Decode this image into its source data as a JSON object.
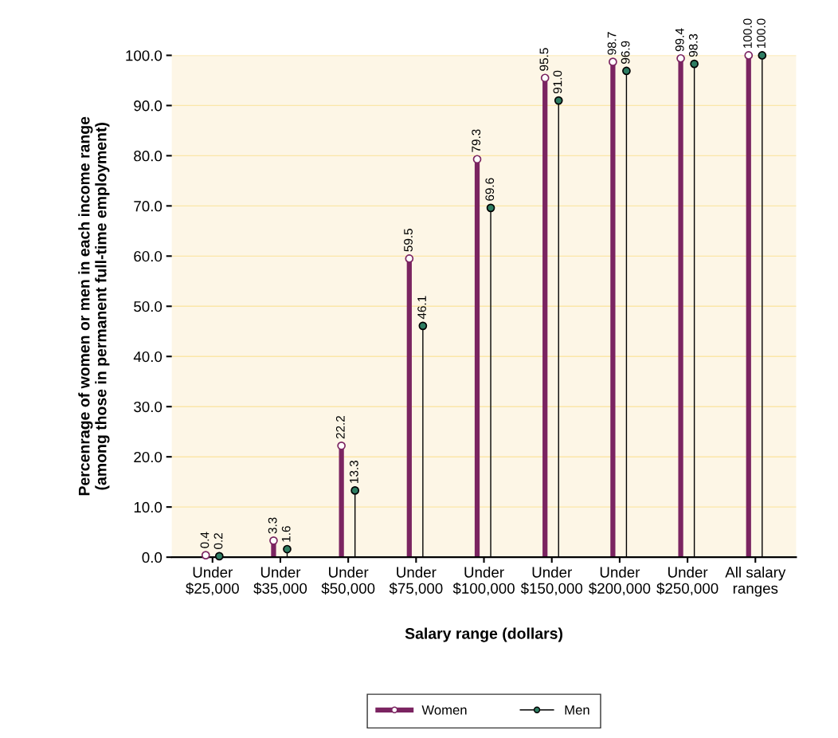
{
  "chart_data": {
    "type": "lollipop",
    "xlabel": "Salary range (dollars)",
    "ylabel": "Percenrage of women or men in each income range\n(among those in permanent full-time employment)",
    "categories": [
      "Under\n$25,000",
      "Under\n$35,000",
      "Under\n$50,000",
      "Under\n$75,000",
      "Under\n$100,000",
      "Under\n$150,000",
      "Under\n$200,000",
      "Under\n$250,000",
      "All salary\nranges"
    ],
    "series": [
      {
        "name": "Women",
        "color": "#7b2461",
        "values": [
          0.4,
          3.3,
          22.2,
          59.5,
          79.3,
          95.5,
          98.7,
          99.4,
          100.0
        ],
        "value_labels": [
          "0.4",
          "3.3",
          "22.2",
          "59.5",
          "79.3",
          "95.5",
          "98.7",
          "99.4",
          "100.0"
        ]
      },
      {
        "name": "Men",
        "color": "#2e7d62",
        "values": [
          0.2,
          1.6,
          13.3,
          46.1,
          69.6,
          91.0,
          96.9,
          98.3,
          100.0
        ],
        "value_labels": [
          "0.2",
          "1.6",
          "13.3",
          "46.1",
          "69.6",
          "91.0",
          "96.9",
          "98.3",
          "100.0"
        ]
      }
    ],
    "ylim": [
      0,
      100
    ],
    "yticks": [
      {
        "value": 0,
        "label": "0.0"
      },
      {
        "value": 10,
        "label": "10.0"
      },
      {
        "value": 20,
        "label": "20.0"
      },
      {
        "value": 30,
        "label": "30.0"
      },
      {
        "value": 40,
        "label": "40.0"
      },
      {
        "value": 50,
        "label": "50.0"
      },
      {
        "value": 60,
        "label": "60.0"
      },
      {
        "value": 70,
        "label": "70.0"
      },
      {
        "value": 80,
        "label": "80.0"
      },
      {
        "value": 90,
        "label": "90.0"
      },
      {
        "value": 100,
        "label": "100.0"
      }
    ],
    "grid": "y",
    "legend": "bottom",
    "marker": "circle"
  }
}
